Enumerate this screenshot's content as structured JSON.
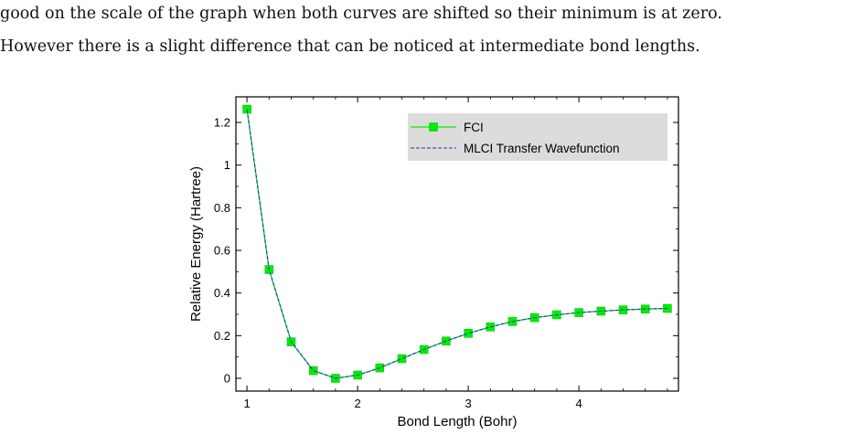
{
  "paragraph": {
    "line1": "good on the scale of the graph when both curves are shifted so their minimum is at zero.",
    "line2": "However there is a slight difference that can be noticed at intermediate bond lengths."
  },
  "chart_data": {
    "type": "line",
    "title": "",
    "xlabel": "Bond Length (Bohr)",
    "ylabel": "Relative Energy (Hartree)",
    "xlim": [
      0.9,
      4.9
    ],
    "ylim": [
      -0.06,
      1.32
    ],
    "xticks": [
      1,
      2,
      3,
      4
    ],
    "yticks": [
      0,
      0.2,
      0.4,
      0.6,
      0.8,
      1,
      1.2
    ],
    "xtick_labels": [
      "1",
      "2",
      "3",
      "4"
    ],
    "ytick_labels": [
      "0",
      "0.2",
      "0.4",
      "0.6",
      "0.8",
      "1",
      "1.2"
    ],
    "grid": false,
    "legend_position": "top-right",
    "x": [
      1.0,
      1.2,
      1.4,
      1.6,
      1.8,
      2.0,
      2.2,
      2.4,
      2.6,
      2.8,
      3.0,
      3.2,
      3.4,
      3.6,
      3.8,
      4.0,
      4.2,
      4.4,
      4.6,
      4.8
    ],
    "series": [
      {
        "name": "FCI",
        "color": "#00ee00",
        "marker": "square",
        "style": "solid",
        "values": [
          1.262,
          0.51,
          0.171,
          0.036,
          0.0,
          0.015,
          0.049,
          0.092,
          0.135,
          0.175,
          0.211,
          0.241,
          0.266,
          0.284,
          0.298,
          0.308,
          0.315,
          0.321,
          0.325,
          0.328
        ]
      },
      {
        "name": "MLCI Transfer Wavefunction",
        "color": "#2233cc",
        "marker": "none",
        "style": "dashed",
        "values": [
          1.262,
          0.51,
          0.171,
          0.036,
          0.0,
          0.015,
          0.049,
          0.092,
          0.135,
          0.175,
          0.211,
          0.241,
          0.266,
          0.284,
          0.298,
          0.308,
          0.315,
          0.321,
          0.325,
          0.328
        ]
      }
    ]
  },
  "colors": {
    "legend_bg": "#dcdcdc",
    "axis": "#000000"
  }
}
